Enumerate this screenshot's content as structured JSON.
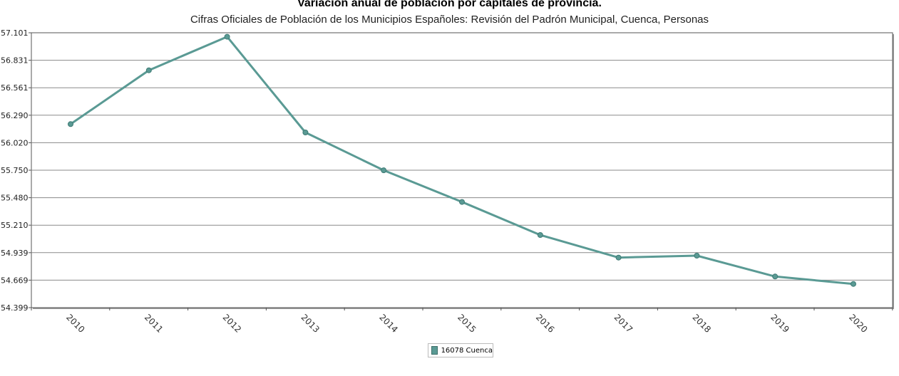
{
  "chart_data": {
    "type": "line",
    "title": "Variación anual de población por capitales de provincia.",
    "subtitle": "Cifras Oficiales de Población de los Municipios Españoles: Revisión del Padrón Municipal, Cuenca, Personas",
    "xlabel": "",
    "ylabel": "",
    "categories": [
      "2010",
      "2011",
      "2012",
      "2013",
      "2014",
      "2015",
      "2016",
      "2017",
      "2018",
      "2019",
      "2020"
    ],
    "y_ticks": [
      "54.399",
      "54.669",
      "54.939",
      "55.210",
      "55.480",
      "55.750",
      "56.020",
      "56.290",
      "56.561",
      "56.831",
      "57.101"
    ],
    "ylim": [
      54399,
      57101
    ],
    "grid": true,
    "legend_position": "bottom-center",
    "series": [
      {
        "name": "16078 Cuenca",
        "color": "#5a9a94",
        "values": [
          56203,
          56732,
          57062,
          56121,
          55749,
          55438,
          55113,
          54891,
          54910,
          54705,
          54632
        ]
      }
    ]
  }
}
